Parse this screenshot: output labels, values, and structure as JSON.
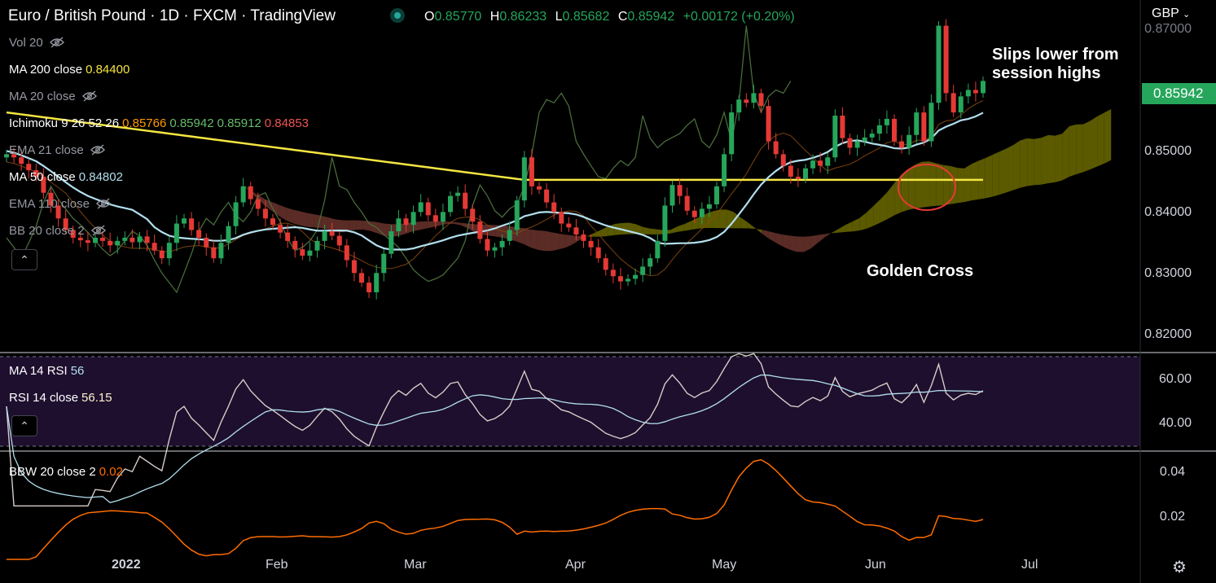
{
  "header": {
    "symbol": "Euro / British Pound · 1D · FXCM · TradingView",
    "o_label": "O",
    "o": "0.85770",
    "h_label": "H",
    "h": "0.86233",
    "l_label": "L",
    "l": "0.85682",
    "c_label": "C",
    "c": "0.85942",
    "change": "+0.00172 (+0.20%)",
    "currency": "GBP"
  },
  "indicators": [
    {
      "name": "Vol 20",
      "value": "",
      "hidden": true
    },
    {
      "name": "MA 200 close",
      "value": "0.84400",
      "color": "#f5e642",
      "hidden": false
    },
    {
      "name": "MA 20 close",
      "value": "",
      "hidden": true
    },
    {
      "name": "Ichimoku 9 26 52 26",
      "value": "",
      "hidden": false
    },
    {
      "name": "EMA 21 close",
      "value": "",
      "hidden": true
    },
    {
      "name": "MA 50 close",
      "value": "0.84802",
      "color": "#b2dfee",
      "hidden": false
    },
    {
      "name": "EMA 110 close",
      "value": "",
      "hidden": true
    },
    {
      "name": "BB 20 close 2",
      "value": "",
      "hidden": true
    }
  ],
  "ichimoku_values": [
    {
      "v": "0.85766",
      "color": "#ff9800"
    },
    {
      "v": "0.85942",
      "color": "#66bb6a"
    },
    {
      "v": "0.85912",
      "color": "#66bb6a"
    },
    {
      "v": "0.84853",
      "color": "#ef5350"
    }
  ],
  "rsi_panel": {
    "ma_label": "MA 14 RSI",
    "ma_value": "56",
    "rsi_label": "RSI 14 close",
    "rsi_value": "56.15",
    "ticks": [
      "60.00",
      "40.00"
    ]
  },
  "bbw_panel": {
    "label": "BBW 20 close 2",
    "value": "0.02",
    "ticks": [
      "0.04",
      "0.02"
    ]
  },
  "annotations": {
    "top": "Slips lower from session highs",
    "cross": "Golden Cross"
  },
  "price_label": "0.85942",
  "y_ticks": [
    "0.87000",
    "0.85000",
    "0.84000",
    "0.83000",
    "0.82000"
  ],
  "x_ticks": [
    "2022",
    "Feb",
    "Mar",
    "Apr",
    "May",
    "Jun",
    "Jul"
  ],
  "colors": {
    "up": "#26a65b",
    "down": "#e53935",
    "ma200": "#f5e642",
    "ma50": "#b2dfee",
    "rsi": "#d7ccc8",
    "bbw": "#ff6d00",
    "rsi_bg": "#1e0f2e"
  },
  "chart_data": {
    "type": "candlestick",
    "y_range": [
      0.8175,
      0.872
    ],
    "series": [
      {
        "name": "EURGBP",
        "close_path": [
          0.848,
          0.8475,
          0.8465,
          0.8455,
          0.8445,
          0.842,
          0.84,
          0.838,
          0.8362,
          0.835,
          0.8346,
          0.8342,
          0.835,
          0.8345,
          0.8338,
          0.8345,
          0.835,
          0.8343,
          0.8352,
          0.8342,
          0.833,
          0.8318,
          0.8342,
          0.8372,
          0.838,
          0.8362,
          0.835,
          0.8335,
          0.8318,
          0.8342,
          0.8368,
          0.8405,
          0.843,
          0.841,
          0.8395,
          0.838,
          0.837,
          0.8358,
          0.8345,
          0.8332,
          0.8322,
          0.833,
          0.8345,
          0.836,
          0.8353,
          0.8338,
          0.8315,
          0.8295,
          0.828,
          0.8265,
          0.8295,
          0.8325,
          0.836,
          0.838,
          0.837,
          0.839,
          0.8405,
          0.8385,
          0.8375,
          0.839,
          0.8415,
          0.842,
          0.8395,
          0.8375,
          0.8348,
          0.833,
          0.8335,
          0.8345,
          0.8362,
          0.8408,
          0.8475,
          0.843,
          0.8425,
          0.8405,
          0.839,
          0.8372,
          0.8366,
          0.8355,
          0.8345,
          0.8335,
          0.8318,
          0.83,
          0.829,
          0.8282,
          0.8286,
          0.8292,
          0.8305,
          0.8318,
          0.8345,
          0.84,
          0.8432,
          0.8415,
          0.8392,
          0.8382,
          0.8395,
          0.8402,
          0.843,
          0.848,
          0.8545,
          0.8565,
          0.856,
          0.8575,
          0.8555,
          0.85,
          0.848,
          0.8462,
          0.8445,
          0.8442,
          0.8458,
          0.847,
          0.8462,
          0.8475,
          0.854,
          0.8505,
          0.849,
          0.85,
          0.8506,
          0.8512,
          0.8525,
          0.8535,
          0.85,
          0.849,
          0.851,
          0.8545,
          0.85,
          0.856,
          0.868,
          0.8575,
          0.8545,
          0.857,
          0.858,
          0.8575,
          0.8594
        ]
      }
    ]
  }
}
